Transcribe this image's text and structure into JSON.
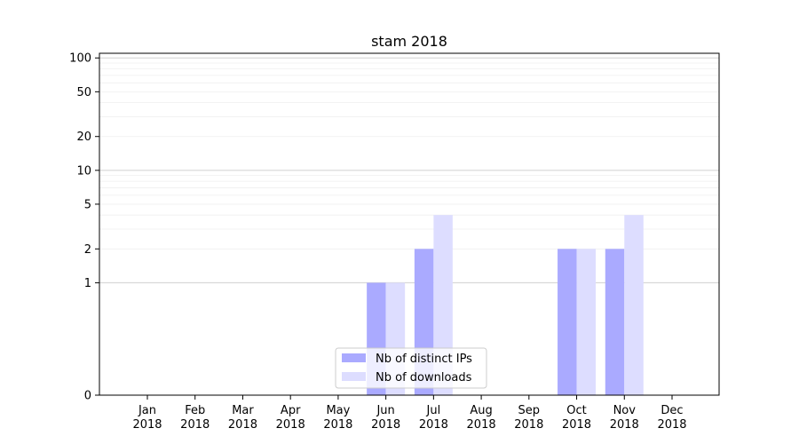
{
  "chart_data": {
    "type": "bar",
    "title": "stam 2018",
    "xlabel": "",
    "ylabel": "",
    "yscale": "symlog",
    "ylim": [
      0,
      110
    ],
    "ytick_labels": [
      "0",
      "1",
      "2",
      "5",
      "10",
      "20",
      "50",
      "100"
    ],
    "ytick_values": [
      0,
      1,
      2,
      5,
      10,
      20,
      50,
      100
    ],
    "categories": [
      "Jan\n2018",
      "Feb\n2018",
      "Mar\n2018",
      "Apr\n2018",
      "May\n2018",
      "Jun\n2018",
      "Jul\n2018",
      "Aug\n2018",
      "Sep\n2018",
      "Oct\n2018",
      "Nov\n2018",
      "Dec\n2018"
    ],
    "series": [
      {
        "name": "Nb of distinct IPs",
        "color": "#aaaaff",
        "values": [
          0,
          0,
          0,
          0,
          0,
          1,
          2,
          0,
          0,
          2,
          2,
          0
        ]
      },
      {
        "name": "Nb of downloads",
        "color": "#ddddff",
        "values": [
          0,
          0,
          0,
          0,
          0,
          1,
          4,
          0,
          0,
          2,
          4,
          0
        ]
      }
    ],
    "grid": true,
    "legend_position": "lower-center"
  }
}
